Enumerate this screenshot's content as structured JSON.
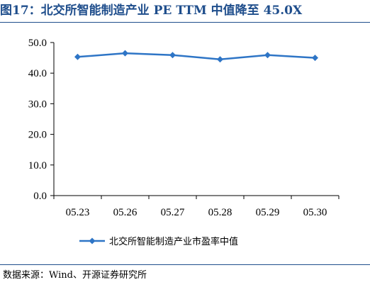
{
  "figure": {
    "title": "图17：北交所智能制造产业 PE TTM 中值降至 45.0X",
    "source": "数据来源：Wind、开源证券研究所"
  },
  "chart_data": {
    "type": "line",
    "categories": [
      "05.23",
      "05.26",
      "05.27",
      "05.28",
      "05.29",
      "05.30"
    ],
    "series": [
      {
        "name": "北交所智能制造产业市盈率中值",
        "values": [
          45.3,
          46.5,
          45.9,
          44.5,
          45.9,
          45.0
        ]
      }
    ],
    "ylim": [
      0,
      50
    ],
    "yticks": [
      "0.0",
      "10.0",
      "20.0",
      "30.0",
      "40.0",
      "50.0"
    ],
    "xlabel": "",
    "ylabel": "",
    "grid": false,
    "legend_position": "bottom",
    "series_color": "#2e75c6",
    "marker": "diamond"
  }
}
